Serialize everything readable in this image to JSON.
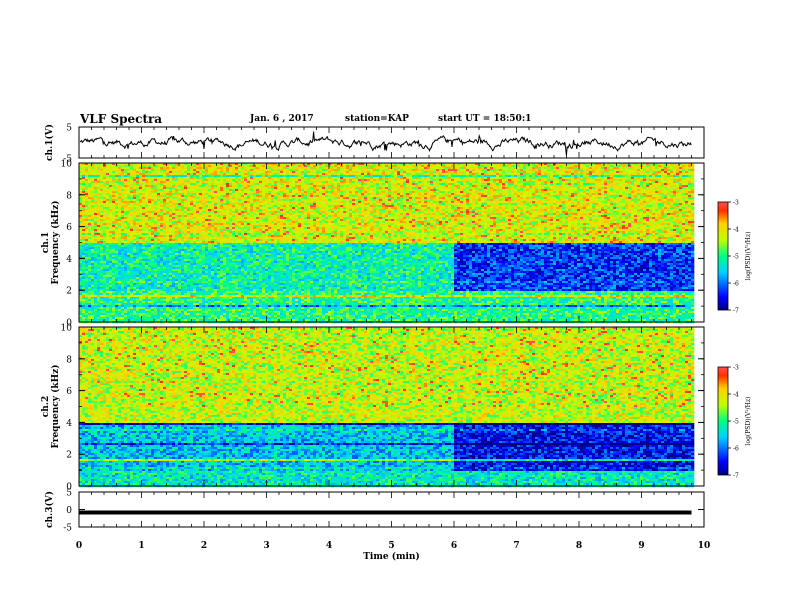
{
  "header": {
    "title": "VLF Spectra",
    "date": "Jan. 6 , 2017",
    "station": "station=KAP",
    "start_ut": "start UT = 18:50:1"
  },
  "chart_data": [
    {
      "type": "line",
      "panel": "ch1-waveform",
      "ylabel": "ch.1(V)",
      "ylim": [
        -5,
        5
      ],
      "yticks": [
        "5",
        "-5"
      ],
      "xlim": [
        0,
        10
      ],
      "style": "noisy black trace around 0 V spanning 0–9.8 min"
    },
    {
      "type": "heatmap",
      "panel": "ch1-spectrogram",
      "ylabel_line1": "ch.1",
      "ylabel_line2": "Frequency (kHz)",
      "ylim": [
        0,
        10
      ],
      "yticks": [
        "0",
        "2",
        "4",
        "6",
        "8",
        "10"
      ],
      "xlim": [
        0,
        10
      ],
      "data_extent_min": 9.8,
      "colorbar": {
        "label": "log(PSD)(V²/Hz)",
        "range": [
          -7,
          -3
        ],
        "ticks": [
          "-3",
          "-4",
          "-5",
          "-6",
          "-7"
        ]
      },
      "levels": {
        "above_5kHz": -4.2,
        "band_2_to_5kHz_before_6min": -5.2,
        "band_2_to_5kHz_after_6min": -6.3,
        "below_2kHz": -5.0
      },
      "regime_change_min": 6.0
    },
    {
      "type": "heatmap",
      "panel": "ch2-spectrogram",
      "ylabel_line1": "ch.2",
      "ylabel_line2": "Frequency (kHz)",
      "ylim": [
        0,
        10
      ],
      "yticks": [
        "0",
        "2",
        "4",
        "6",
        "8",
        "10"
      ],
      "xlim": [
        0,
        10
      ],
      "data_extent_min": 9.8,
      "colorbar": {
        "label": "log(PSD)(V²/Hz)",
        "range": [
          -7,
          -3
        ],
        "ticks": [
          "-3",
          "-4",
          "-5",
          "-6",
          "-7"
        ]
      },
      "levels": {
        "above_4kHz": -4.3,
        "band_1_to_4kHz_before_6min": -5.6,
        "band_1_to_4kHz_after_6min": -6.5,
        "below_1kHz": -5.3
      },
      "regime_change_min": 6.0
    },
    {
      "type": "line",
      "panel": "ch3-waveform",
      "ylabel": "ch.3(V)",
      "ylim": [
        -5,
        5
      ],
      "yticks": [
        "5",
        "0",
        "-5"
      ],
      "xlim": [
        0,
        10
      ],
      "xticks": [
        "0",
        "1",
        "2",
        "3",
        "4",
        "5",
        "6",
        "7",
        "8",
        "9",
        "10"
      ],
      "xlabel": "Time (min)",
      "y_value": 0,
      "x_end": 9.8,
      "style": "thick flat black line"
    }
  ]
}
